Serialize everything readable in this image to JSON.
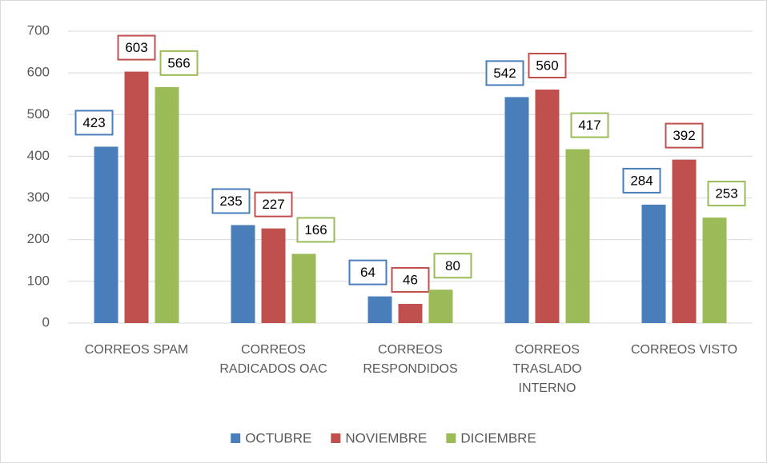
{
  "chart_data": {
    "type": "bar",
    "categories": [
      "CORREOS SPAM",
      "CORREOS RADICADOS OAC",
      "CORREOS RESPONDIDOS",
      "CORREOS TRASLADO INTERNO",
      "CORREOS VISTO"
    ],
    "series": [
      {
        "name": "OCTUBRE",
        "color": "#4a7ebb",
        "values": [
          423,
          235,
          64,
          542,
          284
        ]
      },
      {
        "name": "NOVIEMBRE",
        "color": "#c0504d",
        "values": [
          603,
          227,
          46,
          560,
          392
        ]
      },
      {
        "name": "DICIEMBRE",
        "color": "#9bbb59",
        "values": [
          566,
          166,
          80,
          417,
          253
        ]
      }
    ],
    "ylim": [
      0,
      700
    ],
    "yticks": [
      0,
      100,
      200,
      300,
      400,
      500,
      600,
      700
    ],
    "grid": true,
    "legend": "bottom"
  }
}
